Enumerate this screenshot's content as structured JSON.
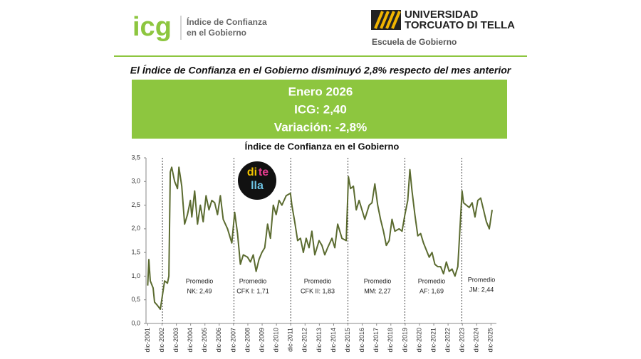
{
  "header": {
    "logo": "icg",
    "logo_lines": [
      "Índice de Confianza",
      "en el Gobierno"
    ],
    "university": [
      "UNIVERSIDAD",
      "TORCUATO DI TELLA"
    ],
    "school": "Escuela de Gobierno"
  },
  "headline": "El Índice de Confianza en el Gobierno disminuyó 2,8% respecto del mes anterior",
  "summary": [
    "Enero 2026",
    "ICG: 2,40",
    "Variación: -2,8%"
  ],
  "badge": [
    "di",
    "te",
    "lla"
  ],
  "chart_data": {
    "type": "line",
    "title": "Índice de Confianza en el Gobierno",
    "x": [
      2001.92,
      2002.0,
      2002.1,
      2002.3,
      2002.4,
      2002.6,
      2002.8,
      2002.95,
      2003.1,
      2003.3,
      2003.4,
      2003.5,
      2003.6,
      2003.8,
      2004.0,
      2004.1,
      2004.3,
      2004.5,
      2004.7,
      2004.9,
      2005.0,
      2005.2,
      2005.4,
      2005.6,
      2005.8,
      2006.0,
      2006.2,
      2006.4,
      2006.6,
      2006.8,
      2007.0,
      2007.2,
      2007.5,
      2007.8,
      2008.0,
      2008.2,
      2008.4,
      2008.6,
      2008.9,
      2009.1,
      2009.3,
      2009.5,
      2009.7,
      2009.9,
      2010.1,
      2010.3,
      2010.5,
      2010.7,
      2010.9,
      2011.1,
      2011.3,
      2011.6,
      2011.9,
      2012.0,
      2012.2,
      2012.4,
      2012.6,
      2012.8,
      2013.0,
      2013.2,
      2013.4,
      2013.6,
      2013.9,
      2014.1,
      2014.3,
      2014.5,
      2014.8,
      2015.0,
      2015.2,
      2015.5,
      2015.8,
      2015.95,
      2016.1,
      2016.3,
      2016.5,
      2016.7,
      2016.9,
      2017.1,
      2017.4,
      2017.6,
      2017.8,
      2018.0,
      2018.2,
      2018.4,
      2018.6,
      2018.8,
      2019.0,
      2019.2,
      2019.5,
      2019.7,
      2019.9,
      2020.1,
      2020.25,
      2020.4,
      2020.6,
      2020.8,
      2021.0,
      2021.2,
      2021.4,
      2021.6,
      2021.8,
      2022.0,
      2022.2,
      2022.4,
      2022.6,
      2022.8,
      2023.0,
      2023.2,
      2023.4,
      2023.6,
      2023.9,
      2024.0,
      2024.2,
      2024.4,
      2024.6,
      2024.8,
      2025.0,
      2025.2,
      2025.4,
      2025.6,
      2025.8,
      2026.0
    ],
    "series": [
      {
        "color": "#5b6b30",
        "values": [
          0.8,
          1.35,
          0.9,
          0.75,
          0.45,
          0.38,
          0.3,
          0.6,
          0.9,
          0.85,
          1.0,
          3.2,
          3.3,
          3.0,
          2.85,
          3.3,
          2.9,
          2.1,
          2.3,
          2.6,
          2.25,
          2.8,
          2.1,
          2.5,
          2.15,
          2.7,
          2.4,
          2.6,
          2.55,
          2.3,
          2.7,
          2.2,
          2.0,
          1.7,
          2.35,
          1.9,
          1.25,
          1.45,
          1.4,
          1.3,
          1.45,
          1.1,
          1.35,
          1.5,
          1.6,
          2.1,
          1.8,
          2.5,
          2.3,
          2.6,
          2.5,
          2.7,
          2.75,
          2.5,
          2.15,
          1.75,
          1.8,
          1.5,
          1.8,
          1.6,
          1.95,
          1.45,
          1.75,
          1.65,
          1.45,
          1.6,
          1.8,
          1.6,
          2.1,
          1.8,
          1.75,
          3.1,
          2.85,
          2.9,
          2.4,
          2.6,
          2.4,
          2.2,
          2.5,
          2.55,
          2.95,
          2.5,
          2.2,
          1.95,
          1.65,
          1.75,
          2.2,
          1.95,
          2.0,
          1.95,
          2.3,
          2.6,
          3.25,
          2.8,
          2.3,
          1.85,
          1.9,
          1.7,
          1.55,
          1.4,
          1.5,
          1.25,
          1.2,
          1.2,
          1.05,
          1.3,
          1.1,
          1.15,
          1.0,
          1.2,
          2.8,
          2.55,
          2.5,
          2.45,
          2.55,
          2.25,
          2.6,
          2.65,
          2.4,
          2.15,
          2.0,
          2.4
        ]
      }
    ],
    "xlim": [
      2001.8,
      2026.3
    ],
    "xticks": [
      {
        "value": 2001.92,
        "label": "dic-2001"
      },
      {
        "value": 2002.92,
        "label": "dic-2002"
      },
      {
        "value": 2003.92,
        "label": "dic-2003"
      },
      {
        "value": 2004.92,
        "label": "dic-2004"
      },
      {
        "value": 2005.92,
        "label": "dic-2005"
      },
      {
        "value": 2006.92,
        "label": "dic-2006"
      },
      {
        "value": 2007.92,
        "label": "dic-2007"
      },
      {
        "value": 2008.92,
        "label": "dic-2008"
      },
      {
        "value": 2009.92,
        "label": "dic-2009"
      },
      {
        "value": 2010.92,
        "label": "dic-2010"
      },
      {
        "value": 2011.92,
        "label": "dic-2011"
      },
      {
        "value": 2012.92,
        "label": "dic-2012"
      },
      {
        "value": 2013.92,
        "label": "dic-2013"
      },
      {
        "value": 2014.92,
        "label": "dic-2014"
      },
      {
        "value": 2015.92,
        "label": "dic-2015"
      },
      {
        "value": 2016.92,
        "label": "dic-2016"
      },
      {
        "value": 2017.92,
        "label": "dic-2017"
      },
      {
        "value": 2018.92,
        "label": "dic-2018"
      },
      {
        "value": 2019.92,
        "label": "dic-2019"
      },
      {
        "value": 2020.92,
        "label": "dic-2020"
      },
      {
        "value": 2021.92,
        "label": "dic-2021"
      },
      {
        "value": 2022.92,
        "label": "dic-2022"
      },
      {
        "value": 2023.92,
        "label": "dic-2023"
      },
      {
        "value": 2024.92,
        "label": "dic-2024"
      },
      {
        "value": 2025.92,
        "label": "dic-2025"
      }
    ],
    "ylim": [
      0,
      3.5
    ],
    "yticks": [
      {
        "value": 0,
        "label": "0,0"
      },
      {
        "value": 0.5,
        "label": "0,5"
      },
      {
        "value": 1,
        "label": "1,0"
      },
      {
        "value": 1.5,
        "label": "1,5"
      },
      {
        "value": 2,
        "label": "2,0"
      },
      {
        "value": 2.5,
        "label": "2,5"
      },
      {
        "value": 3,
        "label": "3,0"
      },
      {
        "value": 3.5,
        "label": "3,5"
      }
    ],
    "period_breaks": [
      2002.95,
      2007.95,
      2011.92,
      2015.92,
      2019.9,
      2023.88
    ],
    "annotations": [
      [
        "Promedio",
        "NK: 2,49"
      ],
      [
        "Promedio",
        "CFK I: 1,71"
      ],
      [
        "Promedio",
        "CFK II: 1,83"
      ],
      [
        "Promedio",
        "MM: 2,27"
      ],
      [
        "Promedio",
        "AF: 1,69"
      ],
      [
        "Promedio",
        "JM: 2,44"
      ]
    ]
  }
}
